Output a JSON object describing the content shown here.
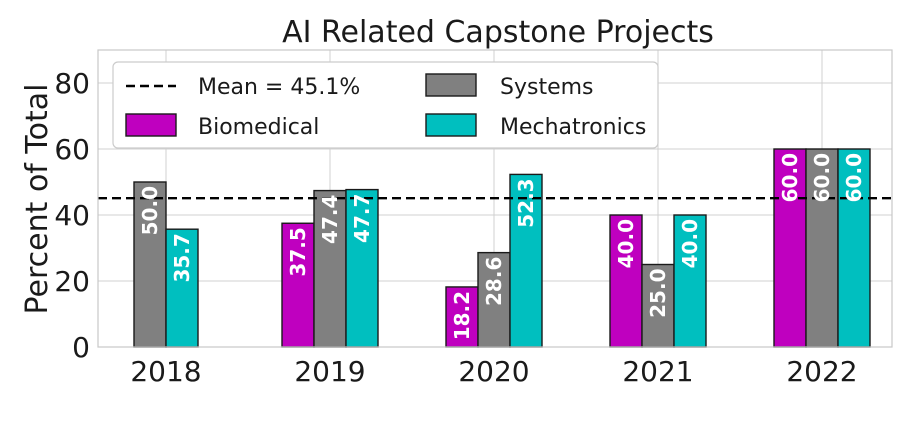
{
  "chart_data": {
    "type": "bar",
    "title": "AI Related Capstone Projects",
    "xlabel": "",
    "ylabel": "Percent of Total",
    "categories": [
      "2018",
      "2019",
      "2020",
      "2021",
      "2022"
    ],
    "ylim": [
      0,
      90
    ],
    "yticks": [
      "0",
      "20",
      "40",
      "60",
      "80"
    ],
    "grid": true,
    "legend_position": "top-left",
    "series": [
      {
        "name": "Biomedical",
        "color": "#bf00bf",
        "values": [
          null,
          37.5,
          18.2,
          40.0,
          60.0
        ],
        "labels": [
          null,
          "37.5",
          "18.2",
          "40.0",
          "60.0"
        ]
      },
      {
        "name": "Systems",
        "color": "#808080",
        "values": [
          50.0,
          47.4,
          28.6,
          25.0,
          60.0
        ],
        "labels": [
          "50.0",
          "47.4",
          "28.6",
          "25.0",
          "60.0"
        ]
      },
      {
        "name": "Mechatronics",
        "color": "#00bfbf",
        "values": [
          35.7,
          47.7,
          52.3,
          40.0,
          60.0
        ],
        "labels": [
          "35.7",
          "47.7",
          "52.3",
          "40.0",
          "60.0"
        ]
      }
    ],
    "reference_line": {
      "label": "Mean = 45.1%",
      "value": 45.1,
      "style": "dashed",
      "color": "#000000"
    }
  }
}
